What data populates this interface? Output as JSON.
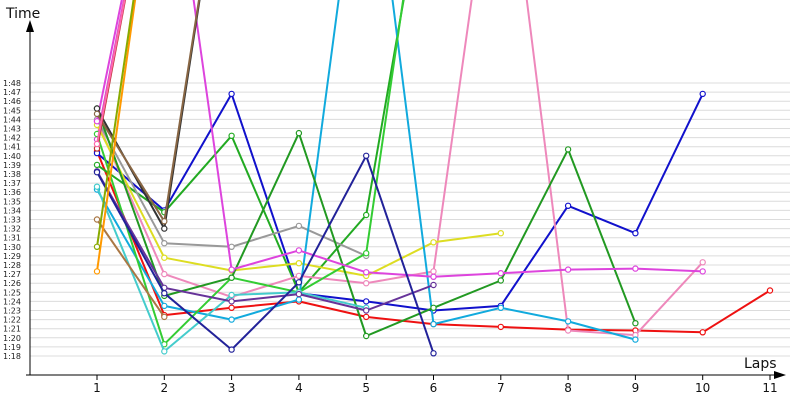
{
  "chart_data": {
    "type": "line",
    "xlabel": "Laps",
    "ylabel": "Time",
    "x": [
      1,
      2,
      3,
      4,
      5,
      6,
      7,
      8,
      9,
      10,
      11
    ],
    "xlim": [
      1,
      11
    ],
    "ylim_seconds": [
      78,
      108
    ],
    "y_tick_labels": [
      "1:18",
      "1:19",
      "1:20",
      "1:21",
      "1:22",
      "1:23",
      "1:24",
      "1:25",
      "1:26",
      "1:27",
      "1:28",
      "1:29",
      "1:30",
      "1:31",
      "1:32",
      "1:33",
      "1:34",
      "1:35",
      "1:36",
      "1:37",
      "1:38",
      "1:39",
      "1:40",
      "1:41",
      "1:42",
      "1:43",
      "1:44",
      "1:45",
      "1:46",
      "1:47",
      "1:48"
    ],
    "grid": true,
    "legend": "none",
    "series": [
      {
        "color": "#ee1111",
        "values": [
          100.5,
          82.5,
          83.3,
          84,
          82.3,
          81.5,
          81.2,
          80.9,
          80.8,
          80.6,
          85.2
        ]
      },
      {
        "color": "#1111cc",
        "values": [
          100.3,
          94,
          106.8,
          84.9,
          84,
          83,
          83.5,
          94.5,
          91.5,
          106.8,
          null
        ]
      },
      {
        "color": "#22aa22",
        "values": [
          99,
          93.8,
          102.2,
          85,
          93.5,
          136,
          136,
          null,
          null,
          null,
          null
        ]
      },
      {
        "color": "#cc44cc",
        "values": [
          101.8,
          140,
          null,
          null,
          null,
          null,
          null,
          null,
          null,
          null,
          null
        ]
      },
      {
        "color": "#ee88bb",
        "values": [
          103.8,
          87,
          84.5,
          86.8,
          86,
          87.3,
          140,
          80.8,
          80.3,
          88.3,
          null
        ]
      },
      {
        "color": "#dddd22",
        "values": [
          103.4,
          88.8,
          87.4,
          88.2,
          86.8,
          90.5,
          91.5,
          null,
          null,
          null,
          null
        ]
      },
      {
        "color": "#999999",
        "values": [
          104,
          90.4,
          90,
          92.3,
          89,
          null,
          null,
          null,
          null,
          null,
          null
        ]
      },
      {
        "color": "#11aadd",
        "values": [
          96.3,
          83.5,
          82,
          84.2,
          140,
          81.5,
          83.3,
          81.8,
          79.8,
          null,
          null
        ]
      },
      {
        "color": "#33cc33",
        "values": [
          102.4,
          79.3,
          86.6,
          85,
          89.3,
          140,
          null,
          null,
          null,
          null,
          null
        ]
      },
      {
        "color": "#229922",
        "values": [
          105.2,
          84.6,
          86.6,
          102.5,
          80.2,
          83.3,
          86.3,
          100.7,
          81.6,
          null,
          null
        ]
      },
      {
        "color": "#44cccc",
        "values": [
          96.6,
          78.5,
          84.7,
          85,
          83.3,
          null,
          null,
          null,
          null,
          null,
          null
        ]
      },
      {
        "color": "#dd44dd",
        "values": [
          103.8,
          140,
          87.5,
          89.6,
          87.2,
          86.7,
          87.1,
          87.5,
          87.6,
          87.3,
          null
        ]
      },
      {
        "color": "#663399",
        "values": [
          98.3,
          85.5,
          84,
          84.8,
          83,
          85.8,
          null,
          null,
          null,
          null,
          null
        ]
      },
      {
        "color": "#222299",
        "values": [
          98.2,
          84.9,
          78.7,
          86.1,
          100,
          78.3,
          null,
          null,
          null,
          null,
          null
        ]
      },
      {
        "color": "#333333",
        "values": [
          105.2,
          92,
          140,
          140,
          140,
          null,
          null,
          null,
          null,
          null,
          null
        ]
      },
      {
        "color": "#886644",
        "values": [
          104.6,
          92.8,
          140,
          null,
          null,
          null,
          null,
          null,
          null,
          null,
          null
        ]
      },
      {
        "color": "#aa7744",
        "values": [
          93,
          82.3,
          null,
          null,
          null,
          null,
          null,
          null,
          null,
          null,
          null
        ]
      },
      {
        "color": "#ff9900",
        "values": [
          87.3,
          140,
          null,
          null,
          null,
          null,
          null,
          null,
          null,
          null,
          null
        ]
      },
      {
        "color": "#88aa00",
        "values": [
          90,
          140,
          null,
          null,
          null,
          null,
          null,
          null,
          null,
          null,
          null
        ]
      },
      {
        "color": "#bb3333",
        "values": [
          100.8,
          140,
          null,
          null,
          null,
          null,
          null,
          null,
          null,
          null,
          null
        ]
      },
      {
        "color": "#ff66aa",
        "values": [
          101.3,
          140,
          null,
          null,
          null,
          null,
          null,
          null,
          null,
          null,
          null
        ]
      }
    ]
  }
}
